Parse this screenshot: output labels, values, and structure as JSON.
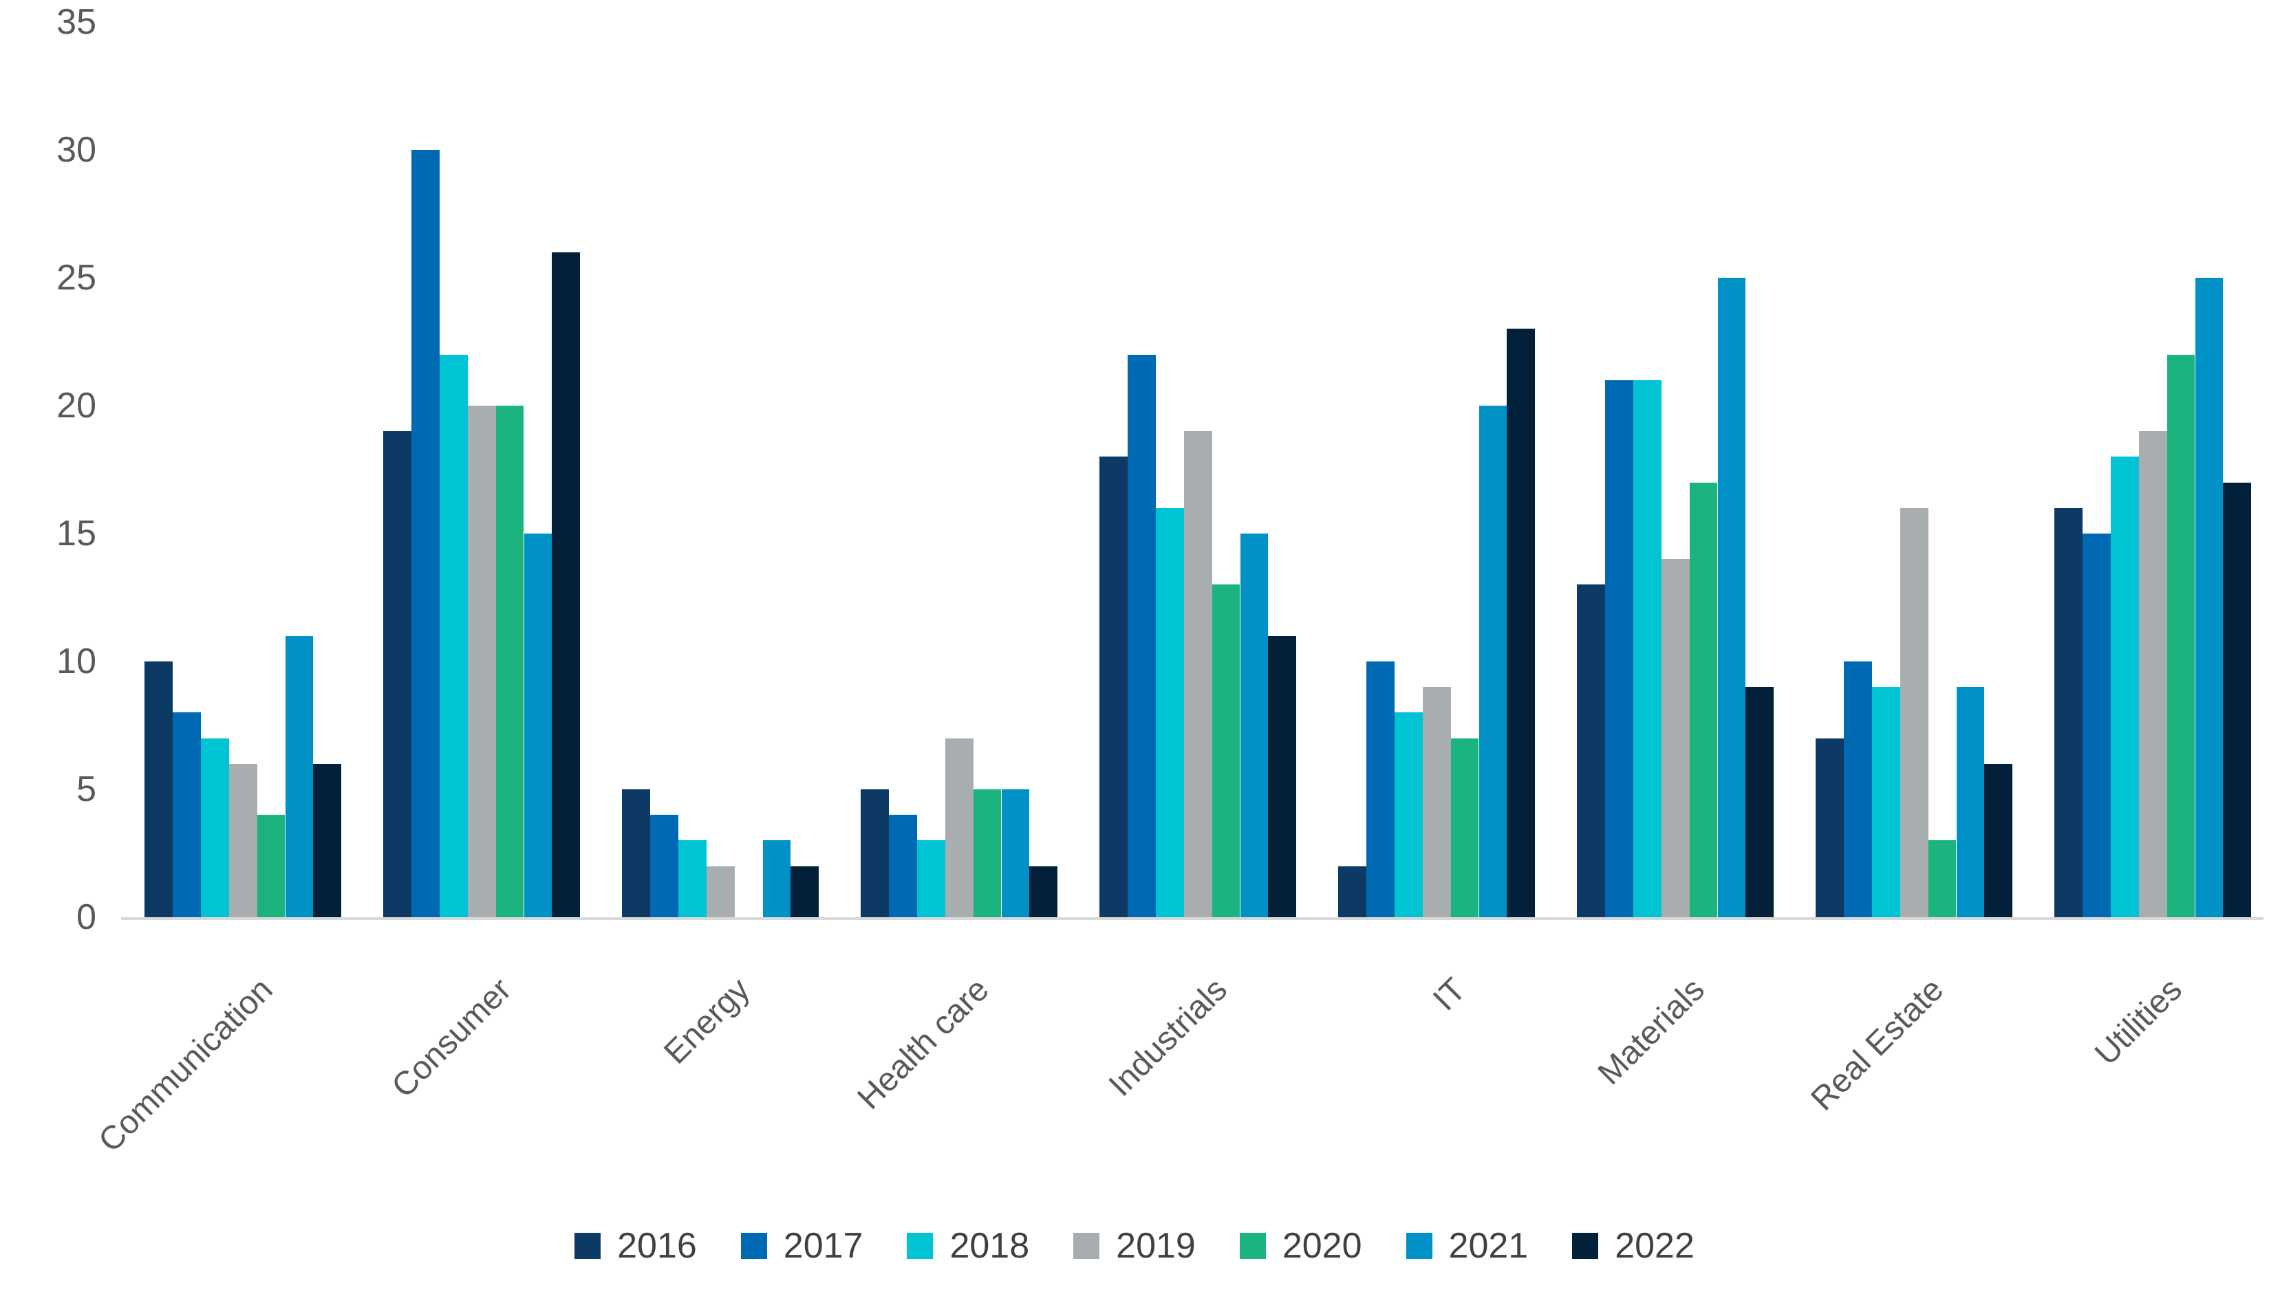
{
  "chart_data": {
    "type": "bar",
    "title": "",
    "xlabel": "",
    "ylabel": "",
    "categories": [
      "Communication",
      "Consumer",
      "Energy",
      "Health care",
      "Industrials",
      "IT",
      "Materials",
      "Real Estate",
      "Utilities"
    ],
    "series": [
      {
        "name": "2016",
        "color": "#0c3a64",
        "values": [
          10,
          19,
          5,
          5,
          18,
          2,
          13,
          7,
          16
        ]
      },
      {
        "name": "2017",
        "color": "#0069b4",
        "values": [
          8,
          30,
          4,
          4,
          22,
          10,
          21,
          10,
          15
        ]
      },
      {
        "name": "2018",
        "color": "#00c4d4",
        "values": [
          7,
          22,
          3,
          3,
          16,
          8,
          21,
          9,
          18
        ]
      },
      {
        "name": "2019",
        "color": "#a8aeb0",
        "values": [
          6,
          20,
          2,
          7,
          19,
          9,
          14,
          16,
          19
        ]
      },
      {
        "name": "2020",
        "color": "#1bb47e",
        "values": [
          4,
          20,
          0,
          5,
          13,
          7,
          17,
          3,
          22
        ]
      },
      {
        "name": "2021",
        "color": "#0091c6",
        "values": [
          11,
          15,
          3,
          5,
          15,
          20,
          25,
          9,
          25
        ]
      },
      {
        "name": "2022",
        "color": "#03203a",
        "values": [
          6,
          26,
          2,
          2,
          11,
          23,
          9,
          6,
          17
        ]
      }
    ],
    "ylim": [
      0,
      35
    ],
    "yticks": [
      0,
      5,
      10,
      15,
      20,
      25,
      30,
      35
    ],
    "grid": false,
    "legend_position": "bottom",
    "category_label_rotation_deg": -45
  },
  "colors": {
    "background": "#ffffff",
    "axis_line": "#d9d9d9",
    "tick_label_text": "#595959",
    "category_label_text": "#595959",
    "legend_text": "#404040"
  }
}
